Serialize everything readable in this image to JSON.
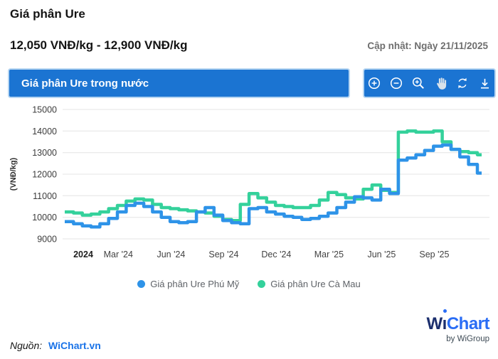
{
  "page": {
    "title": "Giá phân Ure",
    "price_range": "12,050 VNĐ/kg - 12,900 VNĐ/kg",
    "updated": "Cập nhật: Ngày 21/11/2025"
  },
  "chart_header": {
    "title": "Giá phân Ure trong nước",
    "toolbar_icons": [
      "zoom-in-icon",
      "zoom-out-icon",
      "zoom-area-icon",
      "pan-hand-icon",
      "reset-zoom-icon",
      "download-icon"
    ]
  },
  "colors": {
    "header_bar": "#1b74d2",
    "link_blue": "#1a73e8",
    "logo_navy": "#1c2f6e",
    "logo_blue": "#2a6df5",
    "grid_line": "#e4e4e4",
    "tick_text": "#424242"
  },
  "chart_data": {
    "type": "line",
    "title": "Giá phân Ure trong nước",
    "xlabel": "",
    "ylabel": "(VNĐ/kg)",
    "ylim": [
      9000,
      15000
    ],
    "yticks": [
      15000,
      14000,
      13000,
      12000,
      11000,
      10000,
      9000
    ],
    "grid": "horizontal",
    "legend_position": "bottom",
    "line_style": "step-after",
    "x_start": "2023-12",
    "x_end": "2025-11",
    "x_step_months": 0.5,
    "xticks": [
      {
        "label": "2024",
        "t": 0,
        "bold": true
      },
      {
        "label": "Mar '24",
        "t": 2,
        "bold": false
      },
      {
        "label": "Jun '24",
        "t": 5,
        "bold": false
      },
      {
        "label": "Sep '24",
        "t": 8,
        "bold": false
      },
      {
        "label": "Dec '24",
        "t": 11,
        "bold": false
      },
      {
        "label": "Mar '25",
        "t": 14,
        "bold": false
      },
      {
        "label": "Jun '25",
        "t": 17,
        "bold": false
      },
      {
        "label": "Sep '25",
        "t": 20,
        "bold": false
      }
    ],
    "series": [
      {
        "name": "Giá phân Ure Phú Mỹ",
        "color": "#2e93e8",
        "values": [
          9800,
          9700,
          9600,
          9550,
          9700,
          9950,
          10250,
          10550,
          10650,
          10500,
          10250,
          10000,
          9800,
          9750,
          9800,
          10250,
          10450,
          10100,
          9850,
          9750,
          9700,
          10400,
          10450,
          10250,
          10150,
          10050,
          10000,
          9900,
          9950,
          10050,
          10200,
          10450,
          10700,
          10950,
          10900,
          10800,
          11300,
          11100,
          12650,
          12750,
          12900,
          13100,
          13300,
          13350,
          13150,
          12800,
          12450,
          12050
        ]
      },
      {
        "name": "Giá phân Ure Cà Mau",
        "color": "#34d19b",
        "values": [
          10250,
          10200,
          10100,
          10150,
          10250,
          10400,
          10550,
          10750,
          10850,
          10800,
          10600,
          10450,
          10400,
          10350,
          10300,
          10250,
          10200,
          10050,
          9900,
          9850,
          10600,
          11100,
          10900,
          10700,
          10550,
          10500,
          10450,
          10450,
          10550,
          10800,
          11150,
          11050,
          10900,
          10850,
          11300,
          11500,
          11250,
          11150,
          13950,
          14000,
          13950,
          13950,
          14000,
          13500,
          13150,
          13050,
          13000,
          12900
        ]
      }
    ]
  },
  "footer": {
    "source_label": "Nguồn:",
    "source_link": "WiChart.vn",
    "logo": {
      "w": "W",
      "i": "ı",
      "chart": "Chart",
      "byline": "by WiGroup"
    }
  }
}
